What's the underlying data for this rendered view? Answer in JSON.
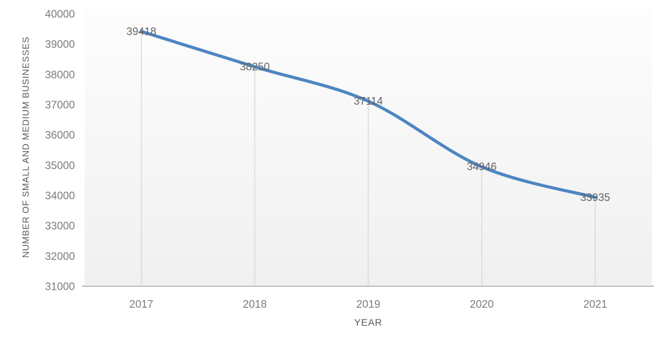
{
  "page": {
    "background": "#ffffff"
  },
  "chart_data": {
    "type": "line",
    "categories": [
      "2017",
      "2018",
      "2019",
      "2020",
      "2021"
    ],
    "values": [
      39418,
      38250,
      37114,
      34946,
      33935
    ],
    "data_labels": [
      "39418",
      "38250",
      "37114",
      "34946",
      "33935"
    ],
    "title": "",
    "xlabel": "YEAR",
    "ylabel": "NUMBER OF SMALL AND MEDIUM BUSINESSES",
    "ylim": [
      31000,
      40000
    ],
    "ytick_step": 1000,
    "ytick_labels": [
      "40000",
      "39000",
      "38000",
      "37000",
      "36000",
      "35000",
      "34000",
      "33000",
      "32000",
      "31000"
    ],
    "grid": "vertical-drop-lines",
    "legend": "none",
    "line_smoothing": true,
    "colors": {
      "line": "#4e85c2",
      "data_label": "#636363",
      "tick_label": "#7a7a7a",
      "axis_title": "#595959",
      "drop_line": "#d9d9d9",
      "axis_line": "#c3c3c3",
      "plot_bg_top": "#fdfdfd",
      "plot_bg_bottom": "#f0f0f0"
    }
  }
}
